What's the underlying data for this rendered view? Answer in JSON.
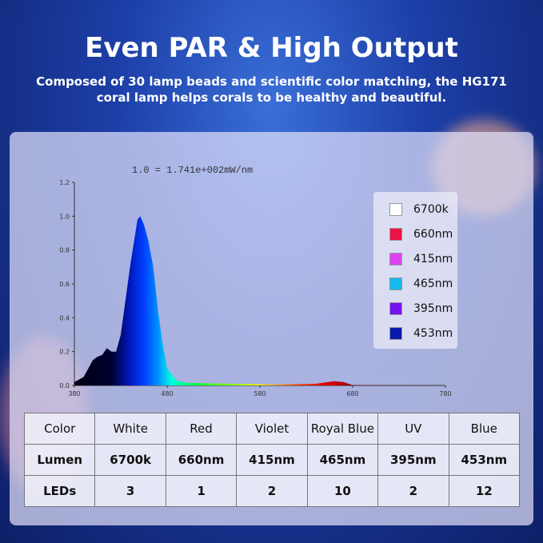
{
  "title": "Even PAR & High Output",
  "subtitle_line1": "Composed of 30 lamp beads and scientific color matching, the HG171",
  "subtitle_line2": "coral lamp helps corals to be healthy and beautiful.",
  "chart_data": {
    "type": "area",
    "title": "1.0 = 1.741e+002mW/nm",
    "xlim": [
      380,
      780
    ],
    "ylim": [
      0,
      1.2
    ],
    "x_ticks": [
      "380",
      "480",
      "580",
      "680",
      "780"
    ],
    "y_ticks": [
      "0.0",
      "0.2",
      "0.4",
      "0.6",
      "0.8",
      "1.0",
      "1.2"
    ],
    "legend_position": "right",
    "legend": [
      {
        "label": "6700k",
        "color": "#ffffff"
      },
      {
        "label": "660nm",
        "color": "#ee1144"
      },
      {
        "label": "415nm",
        "color": "#dd44ee"
      },
      {
        "label": "465nm",
        "color": "#11bbee"
      },
      {
        "label": "395nm",
        "color": "#7711ee"
      },
      {
        "label": "453nm",
        "color": "#0a1aaa"
      }
    ],
    "x": [
      380,
      390,
      400,
      405,
      410,
      415,
      420,
      425,
      430,
      440,
      448,
      451,
      455,
      460,
      465,
      470,
      475,
      480,
      490,
      500,
      550,
      600,
      640,
      660,
      670,
      680,
      780
    ],
    "y": [
      0.02,
      0.05,
      0.15,
      0.17,
      0.18,
      0.22,
      0.2,
      0.2,
      0.3,
      0.7,
      0.98,
      1.0,
      0.95,
      0.85,
      0.7,
      0.45,
      0.25,
      0.1,
      0.03,
      0.015,
      0.01,
      0.005,
      0.01,
      0.025,
      0.02,
      0.002,
      0
    ]
  },
  "table": {
    "rows": [
      [
        "Color",
        "White",
        "Red",
        "Violet",
        "Royal Blue",
        "UV",
        "Blue"
      ],
      [
        "Lumen",
        "6700k",
        "660nm",
        "415nm",
        "465nm",
        "395nm",
        "453nm"
      ],
      [
        "LEDs",
        "3",
        "1",
        "2",
        "10",
        "2",
        "12"
      ]
    ]
  }
}
